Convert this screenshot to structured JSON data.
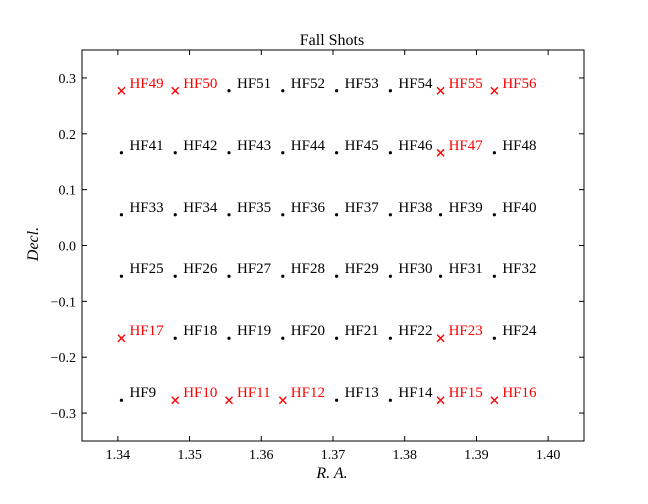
{
  "chart_data": {
    "type": "scatter",
    "title": "Fall Shots",
    "xlabel": "R. A.",
    "ylabel": "Decl.",
    "xlim": [
      1.335,
      1.405
    ],
    "ylim": [
      -0.35,
      0.35
    ],
    "xticks": [
      1.34,
      1.35,
      1.36,
      1.37,
      1.38,
      1.39,
      1.4
    ],
    "xtick_labels": [
      "1.34",
      "1.35",
      "1.36",
      "1.37",
      "1.38",
      "1.39",
      "1.40"
    ],
    "yticks": [
      0.3,
      0.2,
      0.1,
      0.0,
      -0.1,
      -0.2,
      -0.3
    ],
    "ytick_labels": [
      "0.3",
      "0.2",
      "0.1",
      "0.0",
      "−0.1",
      "−0.2",
      "−0.3"
    ],
    "grid": false,
    "colors": {
      "highlight": "#ff0000",
      "normal": "#000000"
    },
    "points": [
      {
        "label": "HF49",
        "x": 1.3405,
        "y": 0.277,
        "marker": "x",
        "color": "#ff0000"
      },
      {
        "label": "HF50",
        "x": 1.348,
        "y": 0.277,
        "marker": "x",
        "color": "#ff0000"
      },
      {
        "label": "HF51",
        "x": 1.3555,
        "y": 0.277,
        "marker": "dot",
        "color": "#000000"
      },
      {
        "label": "HF52",
        "x": 1.363,
        "y": 0.277,
        "marker": "dot",
        "color": "#000000"
      },
      {
        "label": "HF53",
        "x": 1.3705,
        "y": 0.277,
        "marker": "dot",
        "color": "#000000"
      },
      {
        "label": "HF54",
        "x": 1.378,
        "y": 0.277,
        "marker": "dot",
        "color": "#000000"
      },
      {
        "label": "HF55",
        "x": 1.385,
        "y": 0.277,
        "marker": "x",
        "color": "#ff0000"
      },
      {
        "label": "HF56",
        "x": 1.3925,
        "y": 0.277,
        "marker": "x",
        "color": "#ff0000"
      },
      {
        "label": "HF41",
        "x": 1.3405,
        "y": 0.166,
        "marker": "dot",
        "color": "#000000"
      },
      {
        "label": "HF42",
        "x": 1.348,
        "y": 0.166,
        "marker": "dot",
        "color": "#000000"
      },
      {
        "label": "HF43",
        "x": 1.3555,
        "y": 0.166,
        "marker": "dot",
        "color": "#000000"
      },
      {
        "label": "HF44",
        "x": 1.363,
        "y": 0.166,
        "marker": "dot",
        "color": "#000000"
      },
      {
        "label": "HF45",
        "x": 1.3705,
        "y": 0.166,
        "marker": "dot",
        "color": "#000000"
      },
      {
        "label": "HF46",
        "x": 1.378,
        "y": 0.166,
        "marker": "dot",
        "color": "#000000"
      },
      {
        "label": "HF47",
        "x": 1.385,
        "y": 0.166,
        "marker": "x",
        "color": "#ff0000"
      },
      {
        "label": "HF48",
        "x": 1.3925,
        "y": 0.166,
        "marker": "dot",
        "color": "#000000"
      },
      {
        "label": "HF33",
        "x": 1.3405,
        "y": 0.055,
        "marker": "dot",
        "color": "#000000"
      },
      {
        "label": "HF34",
        "x": 1.348,
        "y": 0.055,
        "marker": "dot",
        "color": "#000000"
      },
      {
        "label": "HF35",
        "x": 1.3555,
        "y": 0.055,
        "marker": "dot",
        "color": "#000000"
      },
      {
        "label": "HF36",
        "x": 1.363,
        "y": 0.055,
        "marker": "dot",
        "color": "#000000"
      },
      {
        "label": "HF37",
        "x": 1.3705,
        "y": 0.055,
        "marker": "dot",
        "color": "#000000"
      },
      {
        "label": "HF38",
        "x": 1.378,
        "y": 0.055,
        "marker": "dot",
        "color": "#000000"
      },
      {
        "label": "HF39",
        "x": 1.385,
        "y": 0.055,
        "marker": "dot",
        "color": "#000000"
      },
      {
        "label": "HF40",
        "x": 1.3925,
        "y": 0.055,
        "marker": "dot",
        "color": "#000000"
      },
      {
        "label": "HF25",
        "x": 1.3405,
        "y": -0.055,
        "marker": "dot",
        "color": "#000000"
      },
      {
        "label": "HF26",
        "x": 1.348,
        "y": -0.055,
        "marker": "dot",
        "color": "#000000"
      },
      {
        "label": "HF27",
        "x": 1.3555,
        "y": -0.055,
        "marker": "dot",
        "color": "#000000"
      },
      {
        "label": "HF28",
        "x": 1.363,
        "y": -0.055,
        "marker": "dot",
        "color": "#000000"
      },
      {
        "label": "HF29",
        "x": 1.3705,
        "y": -0.055,
        "marker": "dot",
        "color": "#000000"
      },
      {
        "label": "HF30",
        "x": 1.378,
        "y": -0.055,
        "marker": "dot",
        "color": "#000000"
      },
      {
        "label": "HF31",
        "x": 1.385,
        "y": -0.055,
        "marker": "dot",
        "color": "#000000"
      },
      {
        "label": "HF32",
        "x": 1.3925,
        "y": -0.055,
        "marker": "dot",
        "color": "#000000"
      },
      {
        "label": "HF17",
        "x": 1.3405,
        "y": -0.166,
        "marker": "x",
        "color": "#ff0000"
      },
      {
        "label": "HF18",
        "x": 1.348,
        "y": -0.166,
        "marker": "dot",
        "color": "#000000"
      },
      {
        "label": "HF19",
        "x": 1.3555,
        "y": -0.166,
        "marker": "dot",
        "color": "#000000"
      },
      {
        "label": "HF20",
        "x": 1.363,
        "y": -0.166,
        "marker": "dot",
        "color": "#000000"
      },
      {
        "label": "HF21",
        "x": 1.3705,
        "y": -0.166,
        "marker": "dot",
        "color": "#000000"
      },
      {
        "label": "HF22",
        "x": 1.378,
        "y": -0.166,
        "marker": "dot",
        "color": "#000000"
      },
      {
        "label": "HF23",
        "x": 1.385,
        "y": -0.166,
        "marker": "x",
        "color": "#ff0000"
      },
      {
        "label": "HF24",
        "x": 1.3925,
        "y": -0.166,
        "marker": "dot",
        "color": "#000000"
      },
      {
        "label": "HF9",
        "x": 1.3405,
        "y": -0.277,
        "marker": "dot",
        "color": "#000000"
      },
      {
        "label": "HF10",
        "x": 1.348,
        "y": -0.277,
        "marker": "x",
        "color": "#ff0000"
      },
      {
        "label": "HF11",
        "x": 1.3555,
        "y": -0.277,
        "marker": "x",
        "color": "#ff0000"
      },
      {
        "label": "HF12",
        "x": 1.363,
        "y": -0.277,
        "marker": "x",
        "color": "#ff0000"
      },
      {
        "label": "HF13",
        "x": 1.3705,
        "y": -0.277,
        "marker": "dot",
        "color": "#000000"
      },
      {
        "label": "HF14",
        "x": 1.378,
        "y": -0.277,
        "marker": "dot",
        "color": "#000000"
      },
      {
        "label": "HF15",
        "x": 1.385,
        "y": -0.277,
        "marker": "x",
        "color": "#ff0000"
      },
      {
        "label": "HF16",
        "x": 1.3925,
        "y": -0.277,
        "marker": "x",
        "color": "#ff0000"
      }
    ]
  }
}
